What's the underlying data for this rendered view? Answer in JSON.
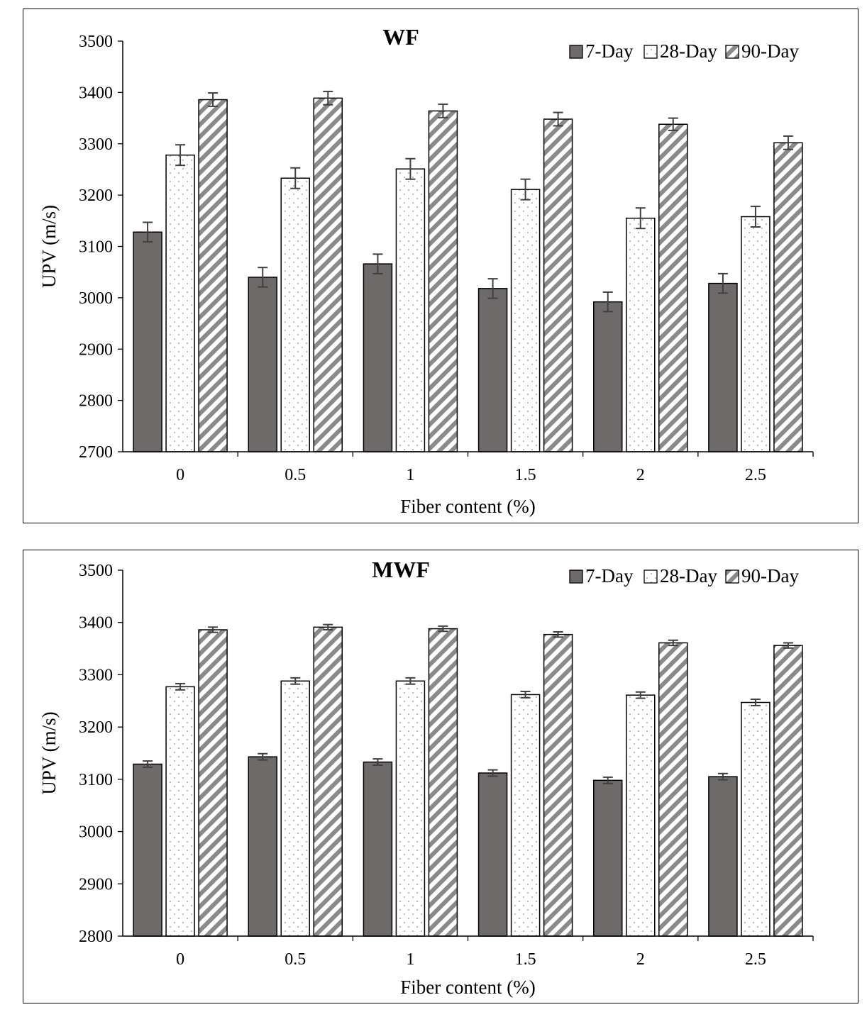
{
  "colors": {
    "day7": "#6d6a69",
    "day28": "#ffffff",
    "day90": "#ffffff",
    "stripe": "#8a8a8a",
    "dots": "#b4b4b4",
    "axis": "#000000",
    "errorbar": "#404040"
  },
  "chart_data": [
    {
      "type": "bar",
      "title": "WF",
      "xlabel": "Fiber content (%)",
      "ylabel": "UPV (m/s)",
      "ylim": [
        2700,
        3500
      ],
      "yticks": [
        "2700",
        "2800",
        "2900",
        "3000",
        "3100",
        "3200",
        "3300",
        "3400",
        "3500"
      ],
      "categories": [
        "0",
        "0.5",
        "1",
        "1.5",
        "2",
        "2.5"
      ],
      "legend_position": "top-right",
      "series": [
        {
          "name": "7-Day",
          "values": [
            3128,
            3040,
            3066,
            3018,
            2992,
            3028
          ],
          "errors": [
            19,
            19,
            19,
            19,
            19,
            19
          ]
        },
        {
          "name": "28-Day",
          "values": [
            3278,
            3233,
            3251,
            3211,
            3155,
            3158
          ],
          "errors": [
            20,
            20,
            20,
            20,
            20,
            20
          ]
        },
        {
          "name": "90-Day",
          "values": [
            3386,
            3389,
            3364,
            3348,
            3338,
            3302
          ],
          "errors": [
            13,
            13,
            13,
            13,
            12,
            13
          ]
        }
      ]
    },
    {
      "type": "bar",
      "title": "MWF",
      "xlabel": "Fiber content (%)",
      "ylabel": "UPV (m/s)",
      "ylim": [
        2800,
        3500
      ],
      "yticks": [
        "2800",
        "2900",
        "3000",
        "3100",
        "3200",
        "3300",
        "3400",
        "3500"
      ],
      "categories": [
        "0",
        "0.5",
        "1",
        "1.5",
        "2",
        "2.5"
      ],
      "legend_position": "top-right",
      "series": [
        {
          "name": "7-Day",
          "values": [
            3129,
            3143,
            3133,
            3112,
            3098,
            3105
          ],
          "errors": [
            6,
            6,
            6,
            6,
            6,
            6
          ]
        },
        {
          "name": "28-Day",
          "values": [
            3277,
            3288,
            3288,
            3262,
            3261,
            3247
          ],
          "errors": [
            6,
            6,
            6,
            6,
            6,
            6
          ]
        },
        {
          "name": "90-Day",
          "values": [
            3386,
            3391,
            3388,
            3377,
            3361,
            3356
          ],
          "errors": [
            5,
            5,
            5,
            5,
            5,
            5
          ]
        }
      ]
    }
  ]
}
